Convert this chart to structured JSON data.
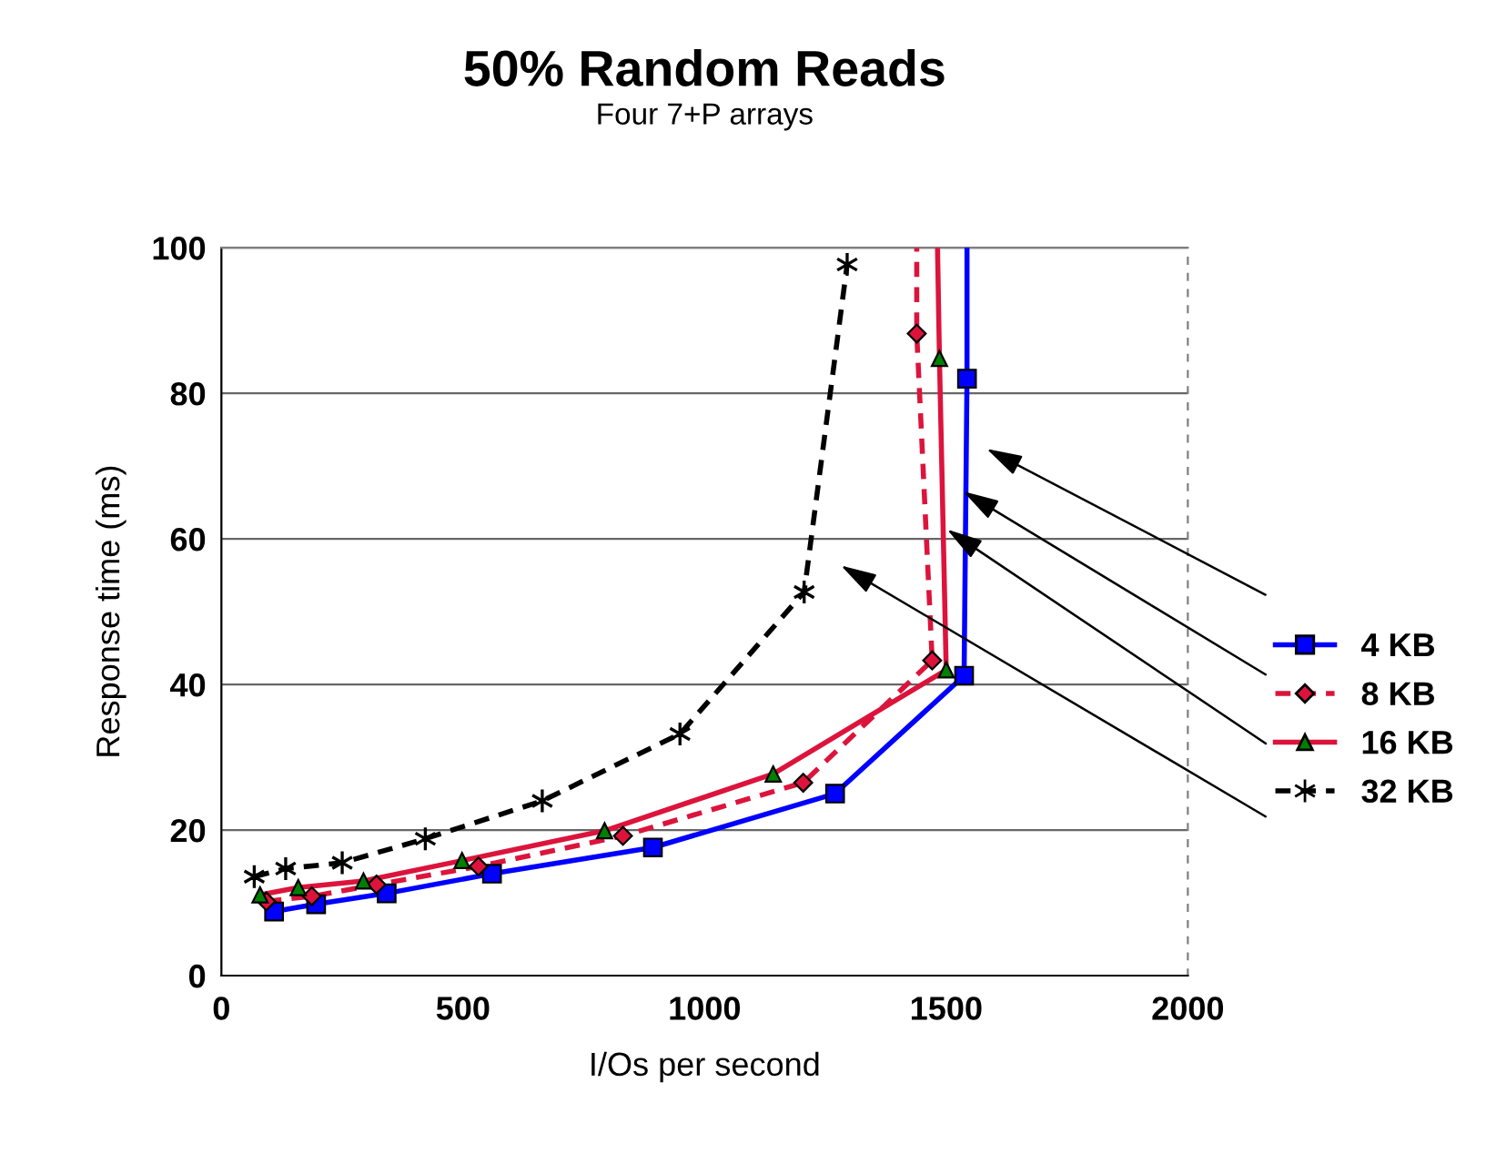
{
  "chart_data": {
    "type": "line",
    "title": "50% Random Reads",
    "subtitle": "Four 7+P arrays",
    "xlabel": "I/Os per second",
    "ylabel": "Response time (ms)",
    "xlim": [
      0,
      2000
    ],
    "xticks": [
      0,
      500,
      1000,
      1500,
      2000
    ],
    "ylim": [
      0,
      100
    ],
    "yticks": [
      0,
      20,
      40,
      60,
      80,
      100
    ],
    "grid": "y",
    "legend": "right",
    "series": [
      {
        "name": "4 KB",
        "color": "#0000ff",
        "marker": "square",
        "line_style": "solid",
        "colors": [
          "#0000ff",
          "#0000ff",
          "#0000ff",
          "#0000ff",
          "#0000ff",
          "#0000ff",
          "#0000ff",
          "#0000ff",
          null
        ],
        "x": [
          109,
          196,
          342,
          560,
          893,
          1270,
          1537,
          1543,
          1543
        ],
        "values": [
          8.8,
          9.8,
          11.3,
          14,
          17.6,
          25,
          41.2,
          82,
          100
        ]
      },
      {
        "name": "8 KB",
        "color": "#dc143c",
        "marker": "diamond",
        "line_style": "dashed",
        "colors": [
          "#dc143c",
          "#dc143c",
          "#dc143c",
          "#dc143c",
          "#dc143c",
          "#dc143c",
          "#dc143c",
          "#dc143c",
          null
        ],
        "x": [
          93,
          187,
          321,
          532,
          831,
          1204,
          1471,
          1439,
          1439
        ],
        "values": [
          10.2,
          10.9,
          12.5,
          15,
          19.2,
          26.5,
          43.3,
          88.2,
          100
        ]
      },
      {
        "name": "16 KB",
        "color": "#dc143c",
        "colors": [
          "#008000",
          "#008000",
          "#008000",
          "#008000",
          "#008000",
          "#008000",
          "#008000",
          "#008000",
          null
        ],
        "marker": "triangle",
        "line_style": "solid",
        "x": [
          80,
          159,
          294,
          498,
          793,
          1142,
          1500,
          1486,
          1482
        ],
        "values": [
          11.1,
          12.1,
          13,
          15.8,
          19.9,
          27.7,
          42,
          84.8,
          100
        ]
      },
      {
        "name": "32 KB",
        "color": "#000000",
        "marker": "cross",
        "line_style": "dashed",
        "x": [
          68,
          133,
          250,
          422,
          664,
          949,
          1206,
          1295
        ],
        "values": [
          13.6,
          14.7,
          15.5,
          18.8,
          24,
          33.2,
          52.7,
          97.7
        ]
      }
    ]
  }
}
